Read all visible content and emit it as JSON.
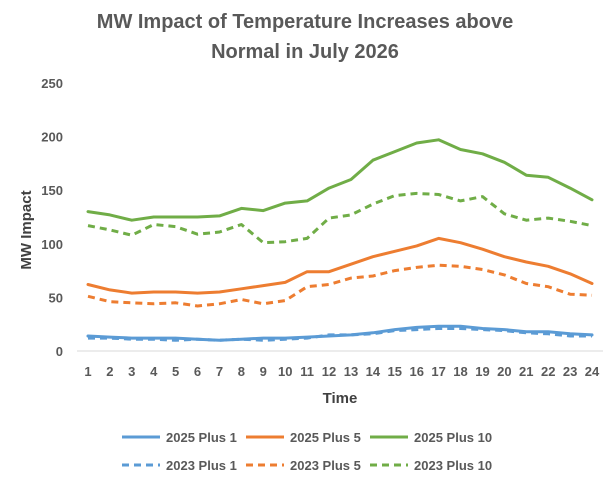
{
  "chart_data": {
    "type": "line",
    "title_lines": [
      "MW Impact of Temperature Increases above",
      "Normal in July 2026"
    ],
    "xlabel": "Time",
    "ylabel": "MW Impact",
    "ylim": [
      0,
      250
    ],
    "yticks": [
      0,
      50,
      100,
      150,
      200,
      250
    ],
    "grid": false,
    "legend_position": "bottom",
    "x": [
      1,
      2,
      3,
      4,
      5,
      6,
      7,
      8,
      9,
      10,
      11,
      12,
      13,
      14,
      15,
      16,
      17,
      18,
      19,
      20,
      21,
      22,
      23,
      24
    ],
    "series": [
      {
        "name": "2025 Plus 1",
        "color": "#5b9bd5",
        "dash": "solid",
        "values": [
          14,
          13,
          12,
          12,
          12,
          11,
          10,
          11,
          12,
          12,
          13,
          14,
          15,
          17,
          20,
          22,
          23,
          23,
          21,
          20,
          18,
          18,
          16,
          15
        ]
      },
      {
        "name": "2025 Plus 5",
        "color": "#ed7d31",
        "dash": "solid",
        "values": [
          62,
          57,
          54,
          55,
          55,
          54,
          55,
          58,
          61,
          64,
          74,
          74,
          81,
          88,
          93,
          98,
          105,
          101,
          95,
          88,
          83,
          79,
          72,
          63
        ]
      },
      {
        "name": "2025 Plus 10",
        "color": "#70ad47",
        "dash": "solid",
        "values": [
          130,
          127,
          122,
          125,
          125,
          125,
          126,
          133,
          131,
          138,
          140,
          152,
          160,
          178,
          186,
          194,
          197,
          188,
          184,
          176,
          164,
          162,
          152,
          141
        ]
      },
      {
        "name": "2023 Plus 1",
        "color": "#5b9bd5",
        "dash": "dashed",
        "values": [
          12,
          12,
          11,
          11,
          10,
          11,
          10,
          11,
          10,
          11,
          12,
          15,
          15,
          16,
          19,
          20,
          21,
          21,
          20,
          19,
          17,
          16,
          14,
          14
        ]
      },
      {
        "name": "2023 Plus 5",
        "color": "#ed7d31",
        "dash": "dashed",
        "values": [
          51,
          46,
          45,
          44,
          45,
          42,
          44,
          48,
          44,
          47,
          60,
          62,
          68,
          70,
          75,
          78,
          80,
          79,
          76,
          71,
          63,
          60,
          53,
          52
        ]
      },
      {
        "name": "2023 Plus 10",
        "color": "#70ad47",
        "dash": "dashed",
        "values": [
          117,
          113,
          108,
          118,
          116,
          109,
          111,
          118,
          101,
          102,
          105,
          124,
          127,
          137,
          145,
          147,
          146,
          140,
          144,
          128,
          122,
          124,
          121,
          117
        ]
      }
    ]
  }
}
